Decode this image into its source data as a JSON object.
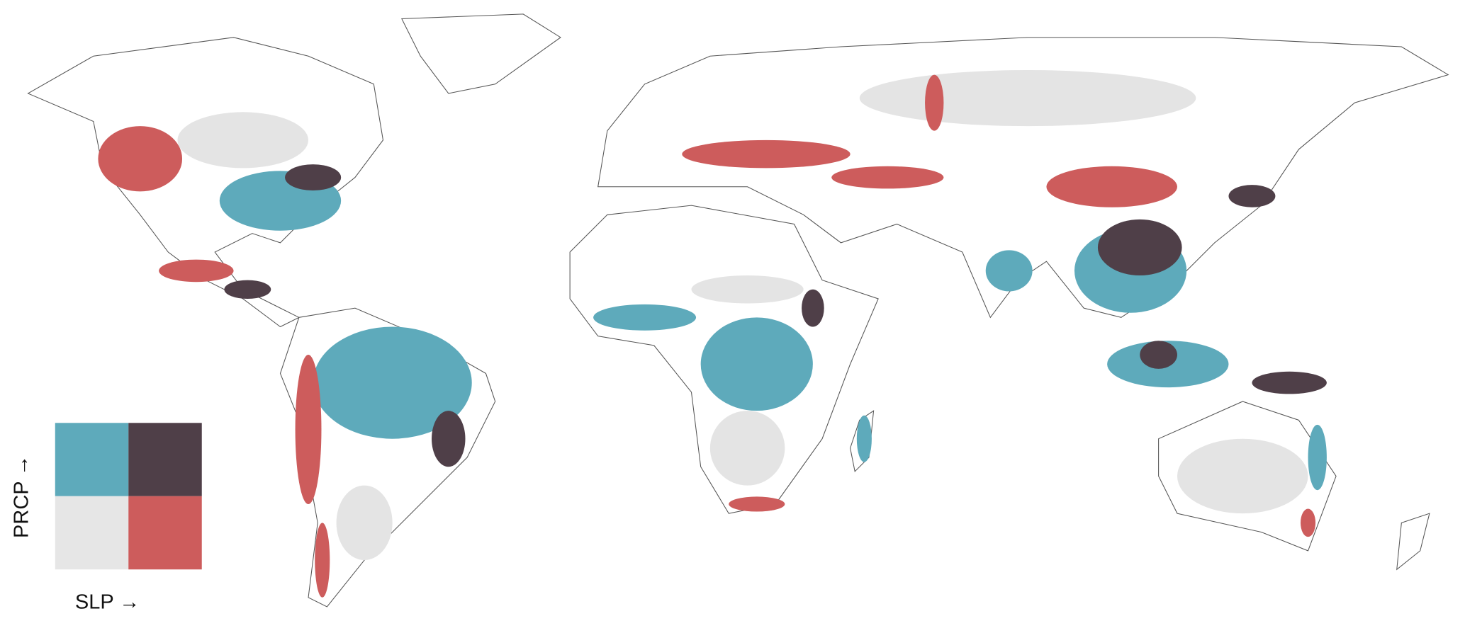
{
  "legend": {
    "y_label": "PRCP →",
    "x_label": "SLP →",
    "colors": [
      [
        "#5eaabb",
        "#4f3f48"
      ],
      [
        "#e6e6e6",
        "#cd5c5c"
      ]
    ]
  }
}
